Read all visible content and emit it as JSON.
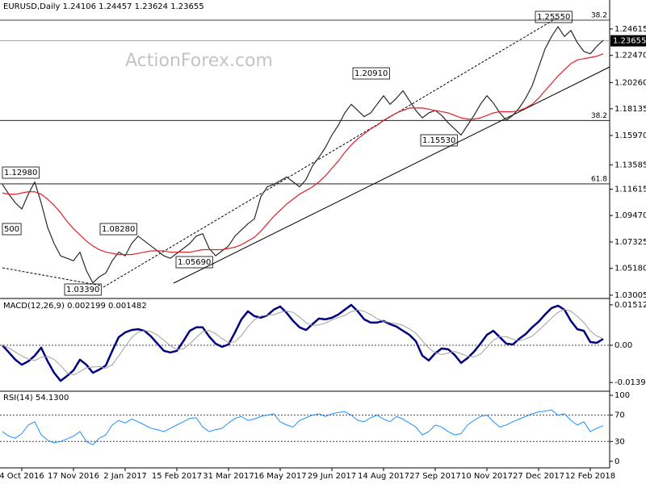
{
  "watermark": "ActionForex.com",
  "chart_data": [
    {
      "type": "line",
      "title": "EURUSD,Daily  1.24106 1.24457 1.23624 1.23655",
      "ylim": [
        1.0287,
        1.2605
      ],
      "yticks": [
        {
          "value": 1.24615,
          "label": "1.24615"
        },
        {
          "value": 1.2247,
          "label": "1.22470"
        },
        {
          "value": 1.2026,
          "label": "1.20260"
        },
        1.18135,
        {
          "value": 1.1597,
          "label": "1.15970"
        },
        1.13585,
        1.11615,
        {
          "value": 1.0947,
          "label": "1.09470"
        },
        1.07325,
        {
          "value": 1.0518,
          "label": "1.05180"
        },
        1.03005
      ],
      "last_price": 1.23655,
      "levels": [
        {
          "value": 1.2533,
          "label": "38.2"
        },
        {
          "value": 1.1719,
          "label": "38.2"
        },
        {
          "value": 1.1204,
          "label": "61.8"
        }
      ],
      "annotations": [
        "1.25550",
        "1.20910",
        "1.15530",
        "1.12980",
        "1.08280",
        "1.05690",
        "1.03390",
        "500"
      ],
      "series": [
        {
          "color": "#2a2a2a",
          "values": [
            1.12,
            1.112,
            1.105,
            1.1,
            1.112,
            1.122,
            1.105,
            1.085,
            1.072,
            1.062,
            1.06,
            1.058,
            1.065,
            1.05,
            1.04,
            1.045,
            1.048,
            1.058,
            1.065,
            1.062,
            1.072,
            1.078,
            1.074,
            1.07,
            1.066,
            1.062,
            1.06,
            1.064,
            1.068,
            1.072,
            1.078,
            1.08,
            1.068,
            1.062,
            1.066,
            1.07,
            1.078,
            1.083,
            1.088,
            1.092,
            1.11,
            1.118,
            1.12,
            1.123,
            1.126,
            1.122,
            1.118,
            1.124,
            1.135,
            1.142,
            1.15,
            1.16,
            1.168,
            1.178,
            1.185,
            1.18,
            1.175,
            1.178,
            1.185,
            1.192,
            1.185,
            1.19,
            1.196,
            1.188,
            1.18,
            1.174,
            1.178,
            1.18,
            1.176,
            1.17,
            1.165,
            1.16,
            1.168,
            1.176,
            1.185,
            1.192,
            1.186,
            1.178,
            1.172,
            1.176,
            1.182,
            1.19,
            1.2,
            1.215,
            1.23,
            1.24,
            1.248,
            1.24,
            1.245,
            1.235,
            1.228,
            1.226,
            1.232,
            1.237
          ]
        },
        {
          "color": "#e0202a",
          "values": [
            1.113,
            1.112,
            1.112,
            1.113,
            1.114,
            1.114,
            1.112,
            1.108,
            1.103,
            1.097,
            1.09,
            1.084,
            1.079,
            1.074,
            1.07,
            1.067,
            1.065,
            1.064,
            1.063,
            1.063,
            1.063,
            1.064,
            1.065,
            1.066,
            1.066,
            1.066,
            1.065,
            1.065,
            1.065,
            1.065,
            1.066,
            1.067,
            1.067,
            1.067,
            1.067,
            1.068,
            1.069,
            1.071,
            1.074,
            1.077,
            1.082,
            1.088,
            1.094,
            1.099,
            1.104,
            1.108,
            1.112,
            1.115,
            1.118,
            1.122,
            1.127,
            1.133,
            1.139,
            1.146,
            1.152,
            1.157,
            1.161,
            1.165,
            1.168,
            1.172,
            1.175,
            1.178,
            1.18,
            1.182,
            1.182,
            1.182,
            1.181,
            1.18,
            1.179,
            1.178,
            1.176,
            1.174,
            1.173,
            1.173,
            1.174,
            1.176,
            1.178,
            1.179,
            1.179,
            1.179,
            1.18,
            1.182,
            1.185,
            1.19,
            1.196,
            1.202,
            1.208,
            1.213,
            1.218,
            1.221,
            1.222,
            1.223,
            1.224,
            1.226
          ]
        }
      ]
    },
    {
      "type": "line",
      "title": "MACD(12,26,9) 0.002199 0.001482",
      "ylim": [
        -0.0169,
        0.0169
      ],
      "yticks": [
        0.01512,
        {
          "value": 0,
          "label": "0.00"
        },
        -0.013938
      ],
      "levels": [
        0
      ],
      "series": [
        {
          "color": "#000080",
          "width": 2.5,
          "values": [
            0.0,
            -0.0027,
            -0.0054,
            -0.0073,
            -0.006,
            -0.0039,
            -0.0009,
            -0.006,
            -0.0103,
            -0.0133,
            -0.0115,
            -0.0094,
            -0.0054,
            -0.0073,
            -0.0103,
            -0.0091,
            -0.0076,
            -0.0021,
            0.003,
            0.0048,
            0.0057,
            0.006,
            0.0054,
            0.0033,
            0.0006,
            -0.0021,
            -0.0027,
            -0.0021,
            0.0015,
            0.0054,
            0.0067,
            0.0067,
            0.0033,
            0.0006,
            -0.0006,
            0.0003,
            0.0048,
            0.0097,
            0.0127,
            0.0109,
            0.0103,
            0.0112,
            0.0133,
            0.0145,
            0.0121,
            0.0091,
            0.0067,
            0.0057,
            0.0079,
            0.01,
            0.0097,
            0.0103,
            0.0115,
            0.0133,
            0.0151,
            0.0127,
            0.0097,
            0.0085,
            0.0085,
            0.0091,
            0.0079,
            0.007,
            0.0054,
            0.0039,
            0.0015,
            -0.0039,
            -0.0057,
            -0.003,
            -0.0012,
            -0.0015,
            -0.0036,
            -0.0066,
            -0.0048,
            -0.0024,
            0.0006,
            0.0039,
            0.0054,
            0.003,
            0.0006,
            0.0003,
            0.0024,
            0.0042,
            0.0067,
            0.0088,
            0.0115,
            0.0139,
            0.0148,
            0.0133,
            0.0091,
            0.006,
            0.0054,
            0.0012,
            0.0009,
            0.0024
          ]
        },
        {
          "color": "#a0a0a0",
          "width": 1,
          "values": [
            0.0,
            -0.001,
            -0.0025,
            -0.004,
            -0.0052,
            -0.0057,
            -0.0045,
            -0.0042,
            -0.0053,
            -0.0076,
            -0.0103,
            -0.0111,
            -0.0099,
            -0.0084,
            -0.0081,
            -0.008,
            -0.0086,
            -0.0073,
            -0.004,
            -0.0005,
            0.0029,
            0.0049,
            0.0055,
            0.0051,
            0.0038,
            0.0018,
            -0.0002,
            -0.0016,
            -0.0014,
            0.0005,
            0.0029,
            0.0051,
            0.0055,
            0.0043,
            0.0025,
            0.0009,
            0.0013,
            0.0036,
            0.0069,
            0.0095,
            0.0109,
            0.0113,
            0.0114,
            0.0123,
            0.0128,
            0.0123,
            0.0106,
            0.0084,
            0.0074,
            0.0076,
            0.0083,
            0.0095,
            0.0104,
            0.0112,
            0.0126,
            0.0132,
            0.0127,
            0.0115,
            0.0099,
            0.009,
            0.0085,
            0.0081,
            0.0074,
            0.0061,
            0.0045,
            0.0017,
            -0.0011,
            -0.0028,
            -0.0035,
            -0.0029,
            -0.0023,
            -0.0032,
            -0.0041,
            -0.0044,
            -0.0033,
            -0.0007,
            0.0019,
            0.0032,
            0.0032,
            0.0023,
            0.0016,
            0.0024,
            0.0034,
            0.0055,
            0.0078,
            0.0102,
            0.0123,
            0.0134,
            0.0128,
            0.0108,
            0.0085,
            0.0054,
            0.0034,
            0.0025
          ]
        }
      ]
    },
    {
      "type": "line",
      "title": "RSI(14) 54.1300",
      "ylim": [
        -10,
        105
      ],
      "yticks": [
        100,
        70,
        30,
        0
      ],
      "levels": [
        70,
        30
      ],
      "categories": [
        null,
        null,
        null,
        "4 Oct 2016",
        null,
        null,
        null,
        null,
        null,
        null,
        null,
        "17 Nov 2016",
        null,
        null,
        null,
        null,
        null,
        null,
        null,
        "2 Jan 2017",
        null,
        null,
        null,
        null,
        null,
        null,
        null,
        "15 Feb 2017",
        null,
        null,
        null,
        null,
        null,
        null,
        null,
        "31 Mar 2017",
        null,
        null,
        null,
        null,
        null,
        null,
        null,
        "16 May 2017",
        null,
        null,
        null,
        null,
        null,
        null,
        null,
        "29 Jun 2017",
        null,
        null,
        null,
        null,
        null,
        null,
        null,
        "14 Aug 2017",
        null,
        null,
        null,
        null,
        null,
        null,
        null,
        "27 Sep 2017",
        null,
        null,
        null,
        null,
        null,
        null,
        null,
        "10 Nov 2017",
        null,
        null,
        null,
        null,
        null,
        null,
        null,
        "27 Dec 2017",
        null,
        null,
        null,
        null,
        null,
        null,
        null,
        "12 Feb 2018",
        null,
        null
      ],
      "series": [
        {
          "color": "#1e90ff",
          "width": 1,
          "values": [
            45,
            38,
            35,
            42,
            55,
            60,
            40,
            32,
            28,
            30,
            34,
            38,
            45,
            30,
            25,
            35,
            40,
            55,
            62,
            58,
            64,
            60,
            55,
            50,
            48,
            45,
            50,
            55,
            60,
            65,
            66,
            52,
            45,
            48,
            50,
            58,
            65,
            68,
            62,
            64,
            68,
            70,
            72,
            60,
            55,
            52,
            62,
            66,
            70,
            72,
            68,
            72,
            74,
            75,
            70,
            62,
            60,
            66,
            70,
            64,
            60,
            68,
            64,
            58,
            52,
            40,
            45,
            55,
            52,
            45,
            40,
            42,
            55,
            62,
            68,
            70,
            60,
            52,
            55,
            60,
            64,
            68,
            72,
            75,
            76,
            78,
            70,
            72,
            62,
            55,
            60,
            45,
            50,
            54
          ]
        }
      ]
    }
  ]
}
